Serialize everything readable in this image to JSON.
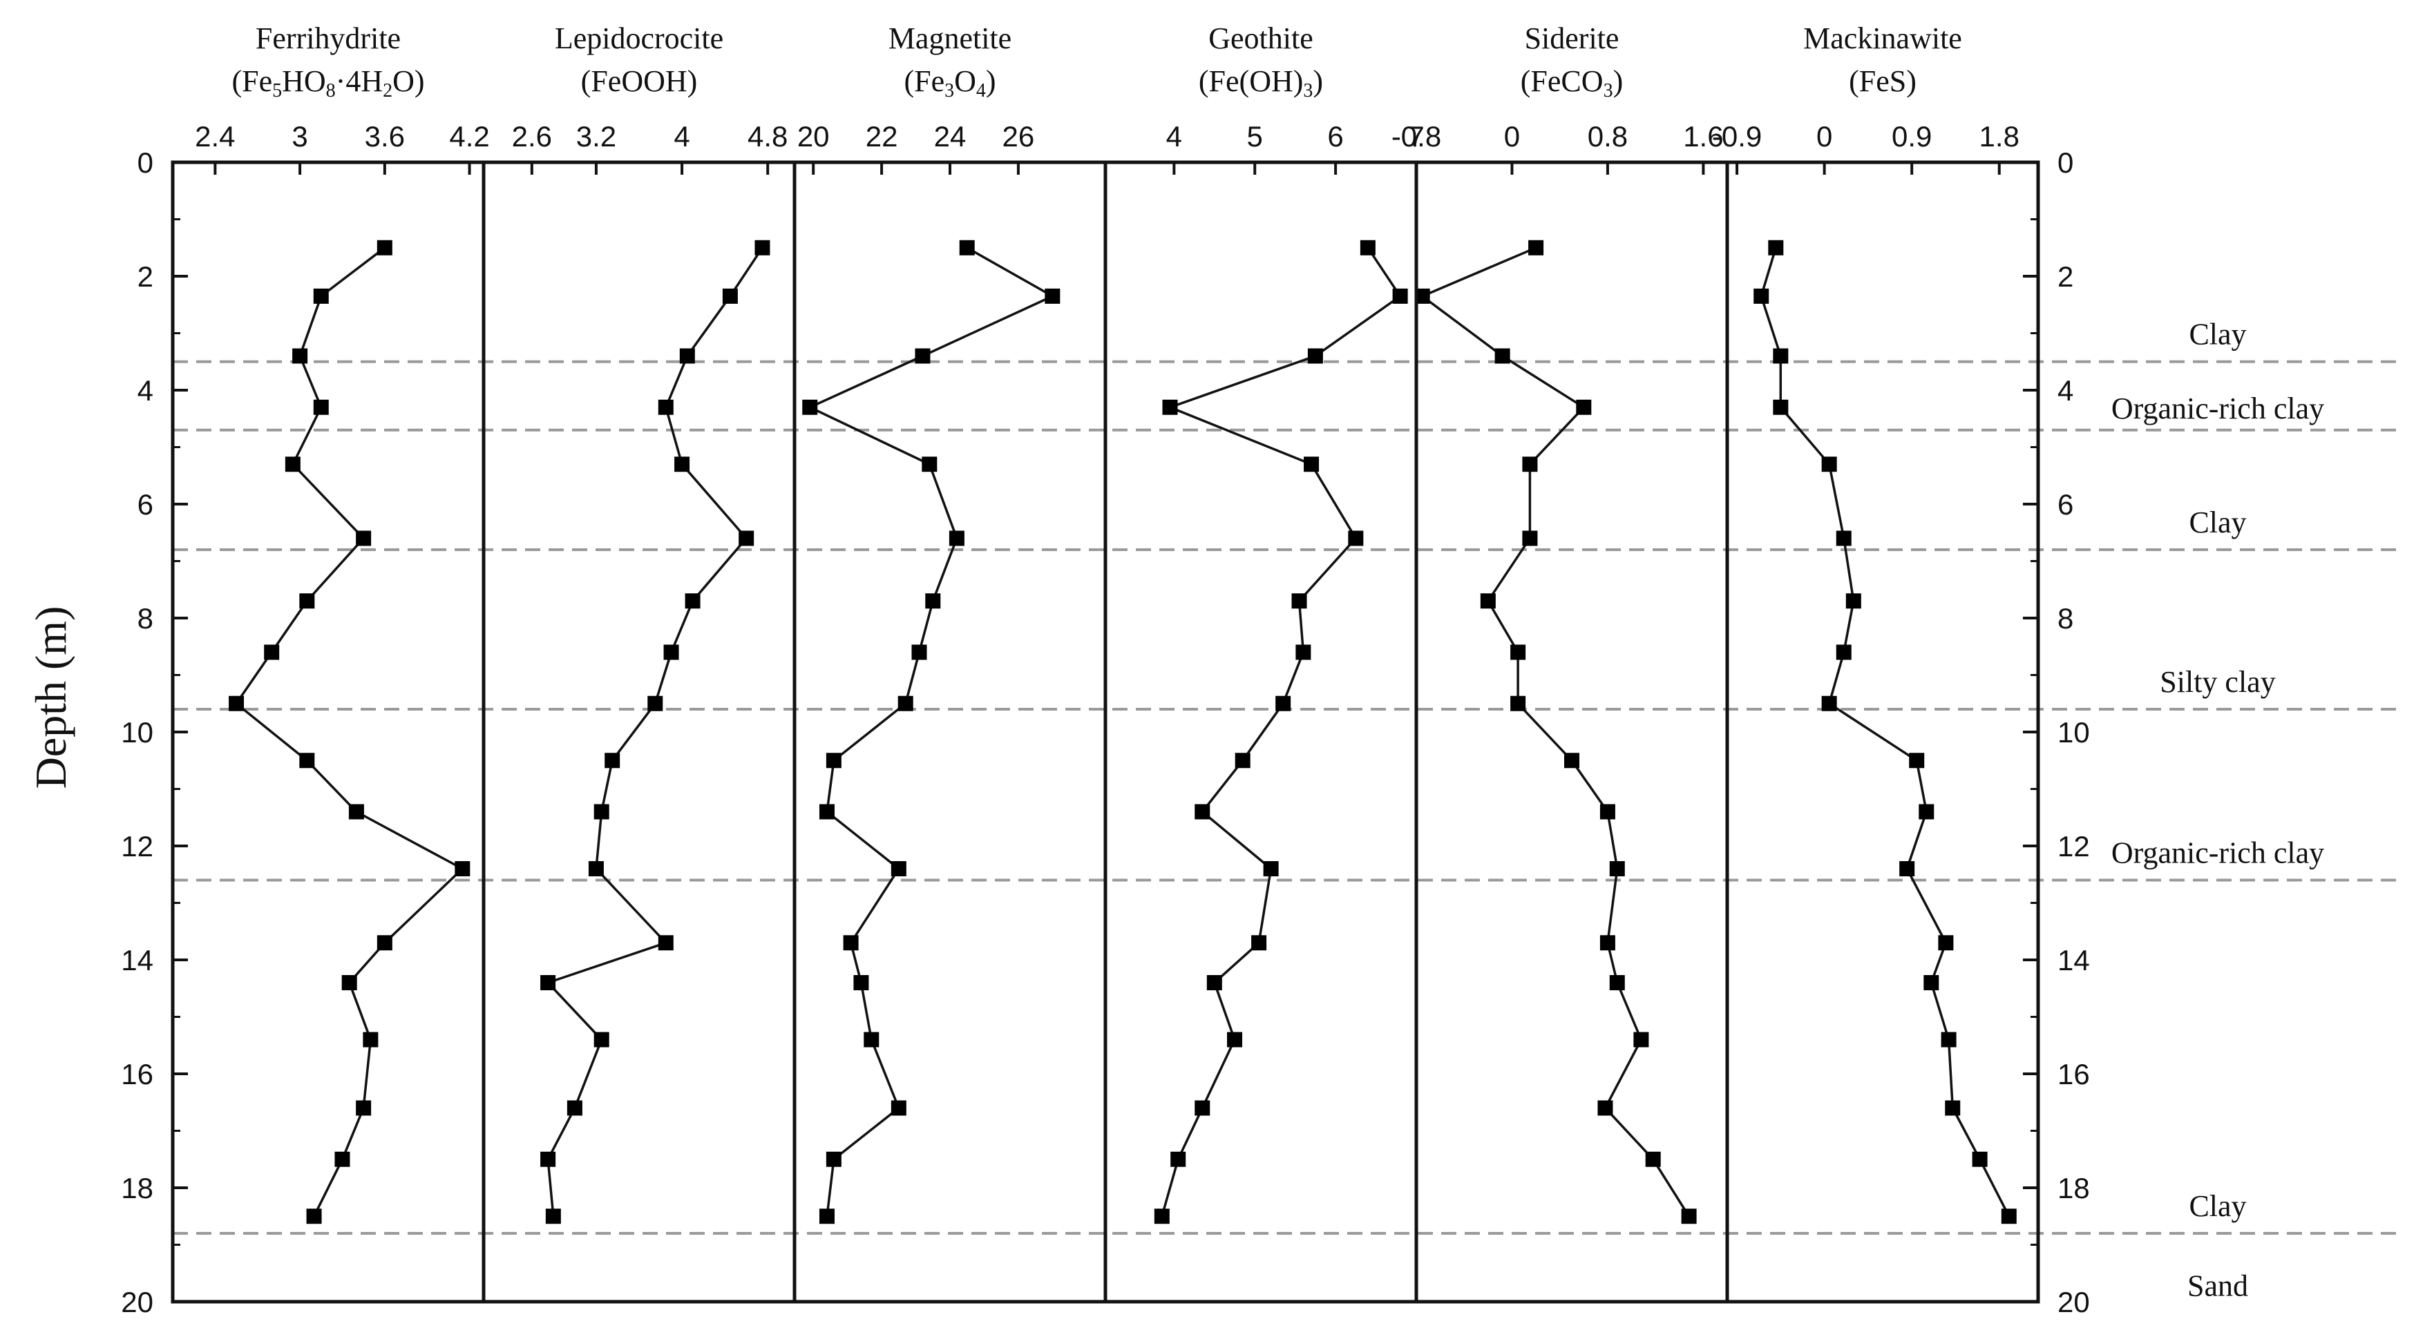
{
  "chart_data": {
    "type": "line",
    "ylabel": "Depth (m)",
    "depth_axis": {
      "range": [
        0,
        20
      ],
      "ticks": [
        0,
        2,
        4,
        6,
        8,
        10,
        12,
        14,
        16,
        18,
        20
      ],
      "reversed": true
    },
    "depths": [
      1.5,
      2.35,
      3.4,
      4.3,
      5.3,
      6.6,
      7.7,
      8.6,
      9.5,
      10.5,
      11.4,
      12.4,
      13.7,
      14.4,
      15.4,
      16.6,
      17.5,
      18.5
    ],
    "panels": [
      {
        "name": "Ferrihydrite",
        "formula_parts": [
          [
            "(Fe",
            "n"
          ],
          [
            "5",
            "sub"
          ],
          [
            "HO",
            "n"
          ],
          [
            "8",
            "sub"
          ],
          [
            "·4H",
            "n"
          ],
          [
            "2",
            "sub"
          ],
          [
            "O)",
            "n"
          ]
        ],
        "xlim": [
          2.1,
          4.3
        ],
        "xticks": [
          {
            "v": 2.4,
            "label": "2.4"
          },
          {
            "v": 3,
            "label": "3"
          },
          {
            "v": 3.6,
            "label": "3.6"
          },
          {
            "v": 4.2,
            "label": "4.2"
          }
        ],
        "values": [
          3.6,
          3.15,
          3.0,
          3.15,
          2.95,
          3.45,
          3.05,
          2.8,
          2.55,
          3.05,
          3.4,
          4.15,
          3.6,
          3.35,
          3.5,
          3.45,
          3.3,
          3.1
        ]
      },
      {
        "name": "Lepidocrocite",
        "formula_parts": [
          [
            "(FeOOH)",
            "n"
          ]
        ],
        "xlim": [
          2.15,
          5.05
        ],
        "xticks": [
          {
            "v": 2.6,
            "label": "2.6"
          },
          {
            "v": 3.2,
            "label": "3.2"
          },
          {
            "v": 4,
            "label": "4"
          },
          {
            "v": 4.8,
            "label": "4.8"
          }
        ],
        "values": [
          4.75,
          4.45,
          4.05,
          3.85,
          4.0,
          4.6,
          4.1,
          3.9,
          3.75,
          3.35,
          3.25,
          3.2,
          3.85,
          2.75,
          3.25,
          3.0,
          2.75,
          2.8
        ]
      },
      {
        "name": "Magnetite",
        "formula_parts": [
          [
            "(Fe",
            "n"
          ],
          [
            "3",
            "sub"
          ],
          [
            "O",
            "n"
          ],
          [
            "4",
            "sub"
          ],
          [
            ")",
            "n"
          ]
        ],
        "xlim": [
          19.45,
          28.55
        ],
        "xticks": [
          {
            "v": 20,
            "label": "20"
          },
          {
            "v": 22,
            "label": "22"
          },
          {
            "v": 24,
            "label": "24"
          },
          {
            "v": 26,
            "label": "26"
          }
        ],
        "values": [
          24.5,
          27.0,
          23.2,
          19.9,
          23.4,
          24.2,
          23.5,
          23.1,
          22.7,
          20.6,
          20.4,
          22.5,
          21.1,
          21.4,
          21.7,
          22.5,
          20.6,
          20.4
        ]
      },
      {
        "name": "Geothite",
        "formula_parts": [
          [
            "(Fe(OH)",
            "n"
          ],
          [
            "3",
            "sub"
          ],
          [
            ")",
            "n"
          ]
        ],
        "xlim": [
          3.15,
          7.0
        ],
        "xticks": [
          {
            "v": 4,
            "label": "4"
          },
          {
            "v": 5,
            "label": "5"
          },
          {
            "v": 6,
            "label": "6"
          },
          {
            "v": 7,
            "label": "7"
          }
        ],
        "values": [
          6.4,
          6.8,
          5.75,
          3.95,
          5.7,
          6.25,
          5.55,
          5.6,
          5.35,
          4.85,
          4.35,
          5.2,
          5.05,
          4.5,
          4.75,
          4.35,
          4.05,
          3.85
        ]
      },
      {
        "name": "Siderite",
        "formula_parts": [
          [
            "(FeCO",
            "n"
          ],
          [
            "3",
            "sub"
          ],
          [
            ")",
            "n"
          ]
        ],
        "xlim": [
          -0.8,
          1.8
        ],
        "xticks": [
          {
            "v": -0.8,
            "label": "-0.8"
          },
          {
            "v": 0,
            "label": "0"
          },
          {
            "v": 0.8,
            "label": "0.8"
          },
          {
            "v": 1.6,
            "label": "1.6"
          }
        ],
        "values": [
          0.2,
          -0.75,
          -0.08,
          0.6,
          0.15,
          0.15,
          -0.2,
          0.05,
          0.05,
          0.5,
          0.8,
          0.88,
          0.8,
          0.88,
          1.08,
          0.78,
          1.18,
          1.48
        ]
      },
      {
        "name": "Mackinawite",
        "formula_parts": [
          [
            "(FeS)",
            "n"
          ]
        ],
        "xlim": [
          -1.0,
          2.2
        ],
        "xticks": [
          {
            "v": -0.9,
            "label": "-0.9"
          },
          {
            "v": 0,
            "label": "0"
          },
          {
            "v": 0.9,
            "label": "0.9"
          },
          {
            "v": 1.8,
            "label": "1.8"
          }
        ],
        "values": [
          -0.5,
          -0.65,
          -0.45,
          -0.45,
          0.05,
          0.2,
          0.3,
          0.2,
          0.05,
          0.95,
          1.05,
          0.85,
          1.25,
          1.1,
          1.28,
          1.32,
          1.6,
          1.9
        ]
      }
    ],
    "boundaries": [
      3.5,
      4.7,
      6.8,
      9.6,
      12.6,
      18.8
    ],
    "lithology": [
      {
        "label": "Clay",
        "depth": 3.0
      },
      {
        "label": "Organic-rich clay",
        "depth": 4.3
      },
      {
        "label": "Clay",
        "depth": 6.3
      },
      {
        "label": "Silty clay",
        "depth": 9.1
      },
      {
        "label": "Organic-rich clay",
        "depth": 12.1
      },
      {
        "label": "Clay",
        "depth": 18.3
      },
      {
        "label": "Sand",
        "depth": 19.7
      }
    ],
    "grid": false,
    "legend": "none",
    "line_color": "#111111",
    "marker_color": "#000000",
    "boundary_color": "#9a9a9a"
  }
}
